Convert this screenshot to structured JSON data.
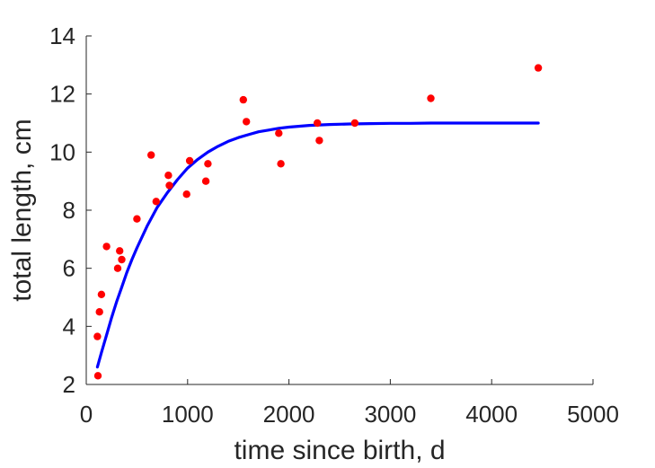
{
  "chart_data": {
    "type": "scatter",
    "title": "",
    "xlabel": "time since birth, d",
    "ylabel": "total length, cm",
    "xlim": [
      0,
      5000
    ],
    "ylim": [
      2,
      14
    ],
    "xticks": [
      0,
      1000,
      2000,
      3000,
      4000,
      5000
    ],
    "yticks": [
      2,
      4,
      6,
      8,
      10,
      12,
      14
    ],
    "xtick_labels": [
      "0",
      "1000",
      "2000",
      "3000",
      "4000",
      "5000"
    ],
    "ytick_labels": [
      "2",
      "4",
      "6",
      "8",
      "10",
      "12",
      "14"
    ],
    "grid": false,
    "legend": "none",
    "colors": {
      "points": "#ff0000",
      "fit_line": "#0000ff",
      "axes": "#262626"
    },
    "series": [
      {
        "kind": "scatter",
        "x": [
          110,
          115,
          130,
          150,
          200,
          310,
          330,
          350,
          500,
          640,
          690,
          810,
          820,
          990,
          1020,
          1180,
          1200,
          1550,
          1580,
          1900,
          1920,
          2280,
          2300,
          2650,
          3400,
          4460
        ],
        "y": [
          3.65,
          2.3,
          4.5,
          5.1,
          6.75,
          6.0,
          6.6,
          6.3,
          7.7,
          9.9,
          8.3,
          9.2,
          8.85,
          8.55,
          9.7,
          9.0,
          9.6,
          11.8,
          11.05,
          10.65,
          9.6,
          11.0,
          10.4,
          11.0,
          11.85,
          12.9
        ]
      },
      {
        "kind": "line",
        "x": [
          110,
          150,
          200,
          250,
          300,
          350,
          400,
          450,
          500,
          600,
          700,
          800,
          900,
          1000,
          1100,
          1200,
          1300,
          1400,
          1500,
          1600,
          1700,
          1800,
          1900,
          2000,
          2200,
          2400,
          2600,
          2800,
          3000,
          3200,
          3400,
          3600,
          3800,
          4000,
          4200,
          4460
        ],
        "y": [
          2.6,
          3.1,
          3.7,
          4.3,
          4.85,
          5.35,
          5.85,
          6.3,
          6.7,
          7.45,
          8.1,
          8.6,
          9.05,
          9.45,
          9.75,
          10.0,
          10.2,
          10.37,
          10.5,
          10.6,
          10.7,
          10.76,
          10.82,
          10.86,
          10.92,
          10.95,
          10.97,
          10.98,
          10.99,
          10.99,
          11.0,
          11.0,
          11.0,
          11.0,
          11.0,
          11.0
        ]
      }
    ]
  }
}
